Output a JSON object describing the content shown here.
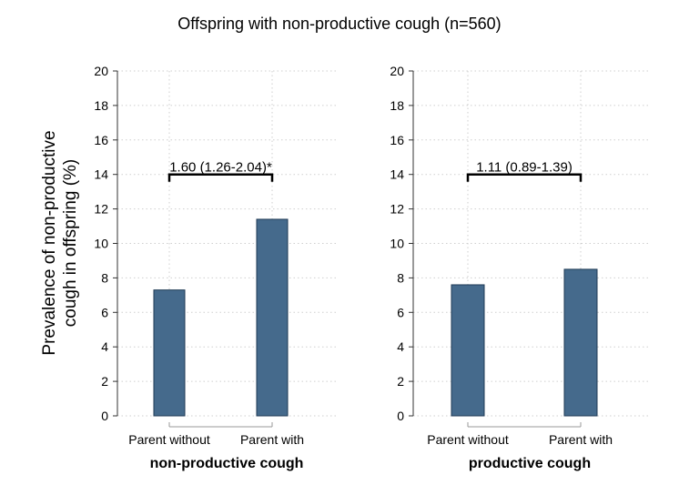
{
  "chart_data": {
    "type": "bar",
    "title": "Offspring with non-productive cough (n=560)",
    "ylabel": "Prevalence of non-productive cough in offspring (%)",
    "ylabel_lines": [
      "Prevalence of non-productive",
      "cough in offspring (%)"
    ],
    "ylim": [
      0,
      20
    ],
    "yticks": [
      0,
      2,
      4,
      6,
      8,
      10,
      12,
      14,
      16,
      18,
      20
    ],
    "grid": true,
    "color": "#456A8C",
    "panels": [
      {
        "xlabel": "non-productive cough",
        "categories": [
          "Parent without",
          "Parent with"
        ],
        "values": [
          7.3,
          11.4
        ],
        "annotation": {
          "text": "1.60 (1.26-2.04)*",
          "y": 14
        }
      },
      {
        "xlabel": "productive cough",
        "categories": [
          "Parent without",
          "Parent with"
        ],
        "values": [
          7.6,
          8.5
        ],
        "annotation": {
          "text": "1.11 (0.89-1.39)",
          "y": 14
        }
      }
    ]
  }
}
